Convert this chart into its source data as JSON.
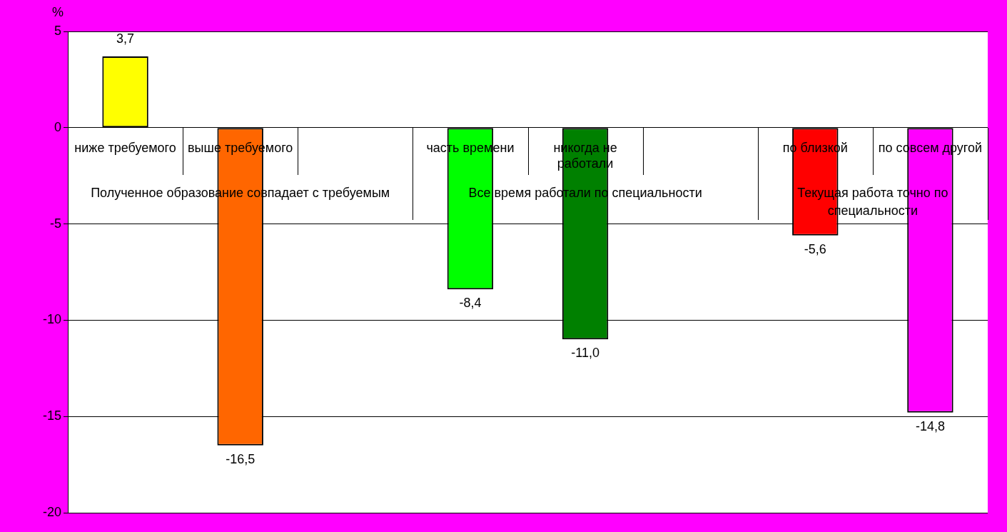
{
  "chart_data": {
    "type": "bar",
    "categories": [
      "ниже требуемого",
      "выше требуемого",
      null,
      "часть времени",
      "никогда не работали",
      null,
      "по близкой",
      "по совсем другой"
    ],
    "values": [
      3.7,
      -16.5,
      null,
      -8.4,
      -11.0,
      null,
      -5.6,
      -14.8
    ],
    "colors": [
      "#ffff00",
      "#ff6600",
      null,
      "#00ff00",
      "#008000",
      null,
      "#ff0000",
      "#ff00ff"
    ],
    "value_labels": [
      "3,7",
      "-16,5",
      null,
      "-8,4",
      "-11,0",
      null,
      "-5,6",
      "-14,8"
    ],
    "annotations": [
      "Полученное образование совпадает с требуемым",
      "Все время работали по специальности",
      "Текущая работа точно по специальности"
    ],
    "ylabel": "%",
    "ylim": [
      -20,
      5
    ],
    "yticks": [
      -20,
      -15,
      -10,
      -5,
      0,
      5
    ],
    "grid": "y",
    "legend": false
  }
}
